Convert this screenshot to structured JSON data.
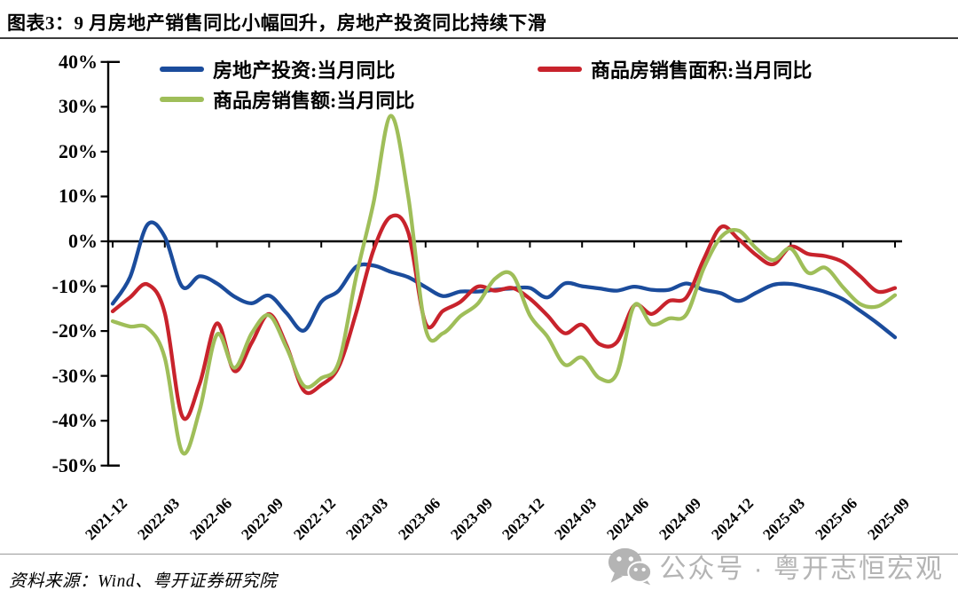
{
  "header": {
    "title": "图表3：9 月房地产销售同比小幅回升，房地产投资同比持续下滑"
  },
  "footer": {
    "source_note": "资料来源：Wind、粤开证券研究院",
    "watermark_text": "公众号 · 粤开志恒宏观",
    "watermark_icon": "wechat-icon",
    "watermark_color": "#b4b4b4"
  },
  "colors": {
    "investment_line": "#1b4c9c",
    "sales_area_line": "#c8232c",
    "sales_value_line": "#9fbe59",
    "zero_axis": "#000000",
    "title_rule": "#3d3d3d",
    "bottom_rule": "#9b9b9b"
  },
  "chart_data": {
    "type": "line",
    "title": "图表3：9 月房地产销售同比小幅回升，房地产投资同比持续下滑",
    "y_unit": "%",
    "ylim": [
      -50,
      40
    ],
    "grid": false,
    "legend_position": "top-left two-row",
    "y_ticks": [
      "40%",
      "30%",
      "20%",
      "10%",
      "0%",
      "-10%",
      "-20%",
      "-30%",
      "-40%",
      "-50%"
    ],
    "x_tick_labels": [
      "2021-12",
      "2022-03",
      "2022-06",
      "2022-09",
      "2022-12",
      "2023-03",
      "2023-06",
      "2023-09",
      "2023-12",
      "2024-03",
      "2024-06",
      "2024-09",
      "2024-12",
      "2025-03",
      "2025-06",
      "2025-09"
    ],
    "x": [
      "2021-12",
      "2022-01",
      "2022-02",
      "2022-03",
      "2022-04",
      "2022-05",
      "2022-06",
      "2022-07",
      "2022-08",
      "2022-09",
      "2022-10",
      "2022-11",
      "2022-12",
      "2023-01",
      "2023-02",
      "2023-03",
      "2023-04",
      "2023-05",
      "2023-06",
      "2023-07",
      "2023-08",
      "2023-09",
      "2023-10",
      "2023-11",
      "2023-12",
      "2024-01",
      "2024-02",
      "2024-03",
      "2024-04",
      "2024-05",
      "2024-06",
      "2024-07",
      "2024-08",
      "2024-09",
      "2024-10",
      "2024-11",
      "2024-12",
      "2025-01",
      "2025-02",
      "2025-03",
      "2025-04",
      "2025-05",
      "2025-06",
      "2025-07",
      "2025-08",
      "2025-09"
    ],
    "series": [
      {
        "name": "房地产投资:当月同比",
        "color": "#1b4c9c",
        "values": [
          -13.9,
          -8.0,
          3.7,
          1.0,
          -10.1,
          -7.8,
          -9.4,
          -12.3,
          -13.8,
          -12.1,
          -16.0,
          -19.9,
          -13.5,
          -11.0,
          -5.7,
          -5.4,
          -6.8,
          -8.0,
          -10.2,
          -12.2,
          -11.2,
          -11.2,
          -10.8,
          -10.5,
          -10.4,
          -12.5,
          -9.4,
          -10.0,
          -10.5,
          -11.0,
          -10.1,
          -10.8,
          -10.8,
          -9.4,
          -10.8,
          -11.6,
          -13.3,
          -11.5,
          -9.7,
          -9.5,
          -10.3,
          -11.3,
          -12.9,
          -15.5,
          -18.3,
          -21.4
        ]
      },
      {
        "name": "商品房销售面积:当月同比",
        "color": "#c8232c",
        "values": [
          -15.6,
          -12.5,
          -9.6,
          -16.0,
          -39.0,
          -31.8,
          -18.3,
          -28.9,
          -22.6,
          -16.2,
          -23.2,
          -33.3,
          -32.0,
          -28.0,
          -16.0,
          -2.0,
          5.5,
          2.0,
          -18.3,
          -15.5,
          -13.5,
          -10.1,
          -11.0,
          -10.4,
          -12.8,
          -16.5,
          -20.5,
          -18.6,
          -22.9,
          -22.5,
          -14.3,
          -16.2,
          -13.3,
          -12.5,
          -4.0,
          3.2,
          0.5,
          -3.0,
          -5.1,
          -1.2,
          -2.8,
          -3.3,
          -4.6,
          -7.8,
          -11.2,
          -10.4
        ]
      },
      {
        "name": "商品房销售额:当月同比",
        "color": "#9fbe59",
        "values": [
          -17.8,
          -19.0,
          -19.3,
          -26.0,
          -47.0,
          -37.7,
          -20.8,
          -28.2,
          -20.5,
          -16.5,
          -23.7,
          -32.2,
          -30.5,
          -27.0,
          -8.0,
          8.5,
          28.0,
          10.0,
          -19.5,
          -20.5,
          -16.7,
          -13.9,
          -8.3,
          -7.5,
          -16.5,
          -21.2,
          -27.5,
          -25.9,
          -30.5,
          -29.5,
          -14.3,
          -18.5,
          -17.2,
          -16.3,
          -6.0,
          1.0,
          2.4,
          -1.5,
          -4.2,
          -1.6,
          -7.0,
          -5.9,
          -10.2,
          -14.0,
          -14.5,
          -12.0
        ]
      }
    ]
  }
}
